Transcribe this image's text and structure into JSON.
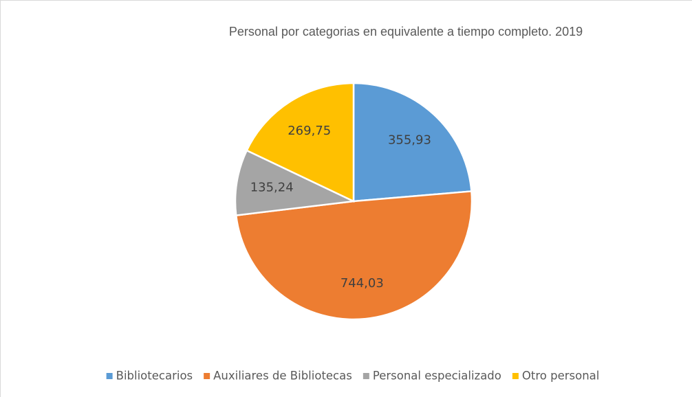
{
  "chart_data": {
    "type": "pie",
    "title": "Personal por categorias en equivalente a tiempo completo. 2019",
    "categories": [
      "Bibliotecarios",
      "Auxiliares de Bibliotecas",
      "Personal especializado",
      "Otro personal"
    ],
    "values": [
      355.93,
      744.03,
      135.24,
      269.75
    ],
    "value_labels": [
      "355,93",
      "744,03",
      "135,24",
      "269,75"
    ],
    "colors": [
      "#5b9bd5",
      "#ed7d31",
      "#a5a5a5",
      "#ffc000"
    ],
    "legend": "bottom"
  }
}
